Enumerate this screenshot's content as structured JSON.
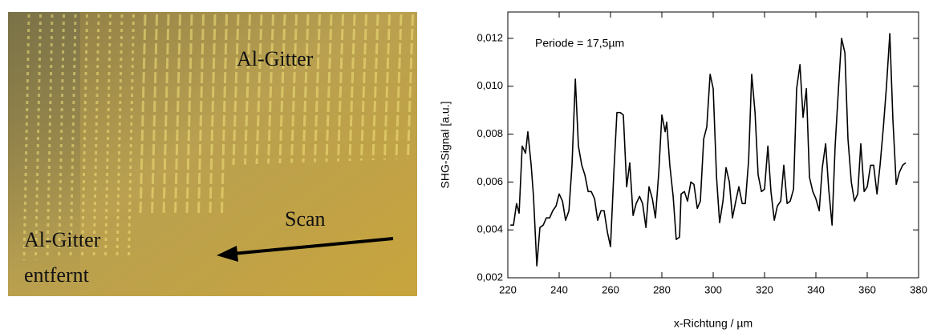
{
  "image": {
    "grid_label": "Al-Gitter",
    "scan_label": "Scan",
    "removed_label": [
      "Al-Gitter",
      "entfernt"
    ]
  },
  "chart_data": {
    "type": "line",
    "annotation": "Periode = 17,5µm",
    "x_label": "x-Richtung / µm",
    "y_label": "SHG-Signal [a.u.]",
    "xlim": [
      220,
      380
    ],
    "xticks": [
      220,
      240,
      260,
      280,
      300,
      320,
      340,
      360,
      380
    ],
    "ylim": [
      0.002,
      0.0131
    ],
    "yticks": [
      {
        "value": 0.002,
        "label": "0,002"
      },
      {
        "value": 0.004,
        "label": "0,004"
      },
      {
        "value": 0.006,
        "label": "0,006"
      },
      {
        "value": 0.008,
        "label": "0,008"
      },
      {
        "value": 0.01,
        "label": "0,010"
      },
      {
        "value": 0.012,
        "label": "0,012"
      }
    ],
    "x": [
      221,
      222.2,
      223.4,
      224.4,
      225.6,
      226.9,
      227.8,
      229.1,
      230,
      231.3,
      232.5,
      233.8,
      235,
      236.3,
      237.5,
      238.8,
      240,
      241.3,
      242.5,
      243.8,
      245,
      246.3,
      247.5,
      248.8,
      250,
      251.3,
      252.5,
      253.8,
      255,
      256.3,
      257.5,
      258.8,
      260,
      261.3,
      262.5,
      263.8,
      265,
      266.3,
      267.5,
      268.8,
      270,
      271.3,
      272.5,
      273.8,
      275,
      276.3,
      277.5,
      278.8,
      280,
      281.3,
      281.9,
      283.1,
      284.4,
      285.6,
      286.9,
      287.5,
      288.8,
      290,
      291.3,
      292.5,
      293.8,
      295,
      296.3,
      297.5,
      298.8,
      300,
      301.3,
      302.5,
      303.8,
      305,
      306.3,
      307.5,
      308.8,
      310,
      311.3,
      312.5,
      313.8,
      315,
      316.3,
      317.5,
      318.8,
      320,
      321.3,
      322.5,
      323.8,
      325,
      326.3,
      327.5,
      328.8,
      330,
      331.3,
      332.5,
      333.8,
      335,
      336.3,
      337.5,
      338.8,
      340,
      341.3,
      342.5,
      343.8,
      345,
      346.3,
      347.5,
      348.8,
      350,
      351.3,
      352.5,
      353.8,
      355,
      356.3,
      357.5,
      358.8,
      360,
      361.3,
      362.5,
      363.8,
      365,
      366.3,
      367.5,
      368.8,
      370,
      371.3,
      372.5,
      373.8,
      375
    ],
    "series": [
      {
        "color": "#000000",
        "values": [
          0.0042,
          0.0042,
          0.0051,
          0.0047,
          0.0075,
          0.0072,
          0.0081,
          0.0067,
          0.0054,
          0.0025,
          0.0041,
          0.0042,
          0.0045,
          0.0045,
          0.0048,
          0.005,
          0.0055,
          0.0052,
          0.0044,
          0.0048,
          0.0067,
          0.0103,
          0.0075,
          0.0067,
          0.0063,
          0.0056,
          0.0056,
          0.0053,
          0.0044,
          0.0048,
          0.0048,
          0.0039,
          0.0033,
          0.0064,
          0.0089,
          0.0089,
          0.0088,
          0.0058,
          0.0068,
          0.0046,
          0.0051,
          0.0054,
          0.0051,
          0.0041,
          0.0058,
          0.0053,
          0.0045,
          0.0064,
          0.0088,
          0.0081,
          0.0085,
          0.0067,
          0.0054,
          0.0036,
          0.0037,
          0.0055,
          0.0056,
          0.0052,
          0.006,
          0.0059,
          0.0049,
          0.0052,
          0.0078,
          0.0083,
          0.0105,
          0.0099,
          0.0062,
          0.0043,
          0.0052,
          0.0066,
          0.006,
          0.0045,
          0.0052,
          0.0058,
          0.0051,
          0.0051,
          0.0069,
          0.0105,
          0.0089,
          0.0063,
          0.0056,
          0.0057,
          0.0075,
          0.0056,
          0.0044,
          0.005,
          0.0052,
          0.0067,
          0.0051,
          0.0052,
          0.0057,
          0.0099,
          0.0109,
          0.0087,
          0.0099,
          0.0062,
          0.0056,
          0.0053,
          0.0048,
          0.0066,
          0.0076,
          0.0057,
          0.0042,
          0.0075,
          0.0099,
          0.012,
          0.0114,
          0.0078,
          0.006,
          0.0052,
          0.0055,
          0.0076,
          0.0056,
          0.0058,
          0.0067,
          0.0067,
          0.0055,
          0.0067,
          0.0083,
          0.01,
          0.0122,
          0.0086,
          0.0059,
          0.0064,
          0.0067,
          0.0068
        ]
      }
    ]
  }
}
